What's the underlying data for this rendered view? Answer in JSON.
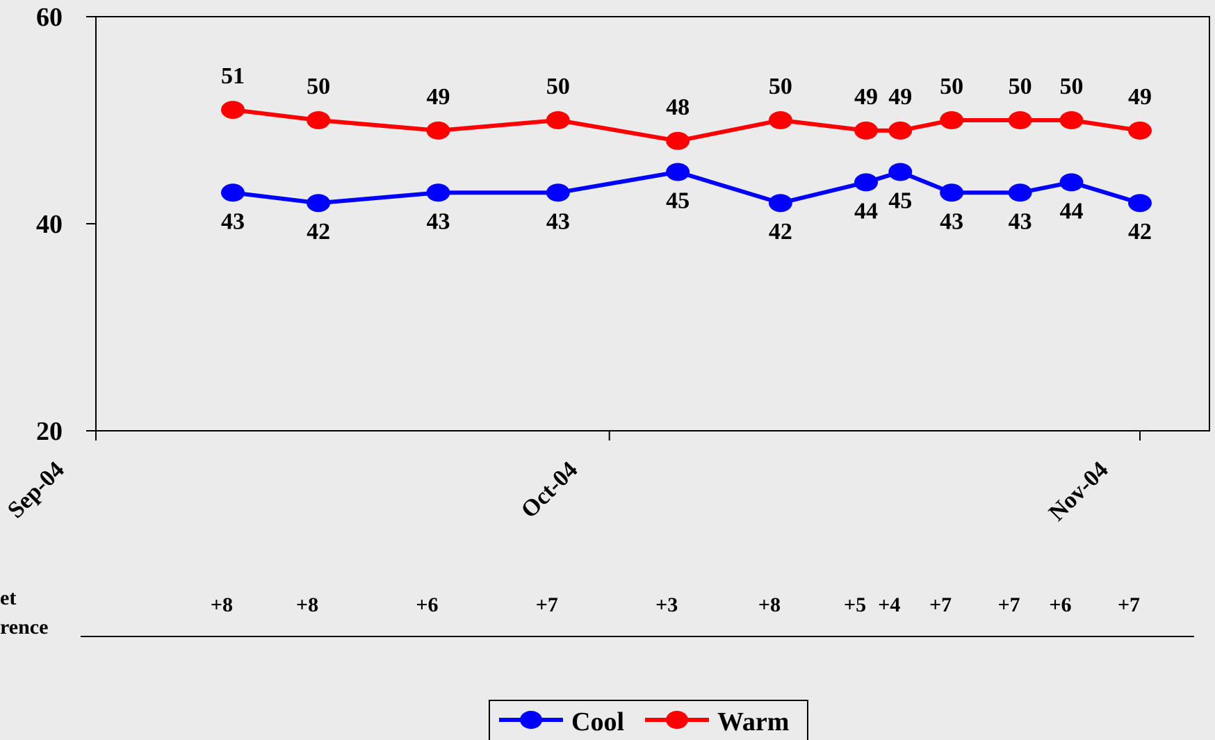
{
  "chart_data": {
    "type": "line",
    "x": [
      "2004-09-09",
      "2004-09-14",
      "2004-09-21",
      "2004-09-28",
      "2004-10-05",
      "2004-10-11",
      "2004-10-16",
      "2004-10-18",
      "2004-10-21",
      "2004-10-25",
      "2004-10-28",
      "2004-11-01"
    ],
    "series": [
      {
        "name": "Cool",
        "color": "#0000ff",
        "values": [
          43,
          42,
          43,
          43,
          45,
          42,
          44,
          45,
          43,
          43,
          44,
          42
        ]
      },
      {
        "name": "Warm",
        "color": "#ff0000",
        "values": [
          51,
          50,
          49,
          50,
          48,
          50,
          49,
          49,
          50,
          50,
          50,
          49
        ]
      }
    ],
    "net_difference": [
      "+8",
      "+8",
      "+6",
      "+7",
      "+3",
      "+8",
      "+5",
      "+4",
      "+7",
      "+7",
      "+6",
      "+7"
    ],
    "net_label_lines": [
      "et",
      "rence"
    ],
    "ylim": [
      20,
      60
    ],
    "yticks": [
      20,
      40,
      60
    ],
    "xticks": [
      {
        "date": "2004-09-01",
        "label": "Sep-04"
      },
      {
        "date": "2004-10-01",
        "label": "Oct-04"
      },
      {
        "date": "2004-11-01",
        "label": "Nov-04"
      }
    ],
    "legend_placement": "bottom-center",
    "grid": false
  }
}
